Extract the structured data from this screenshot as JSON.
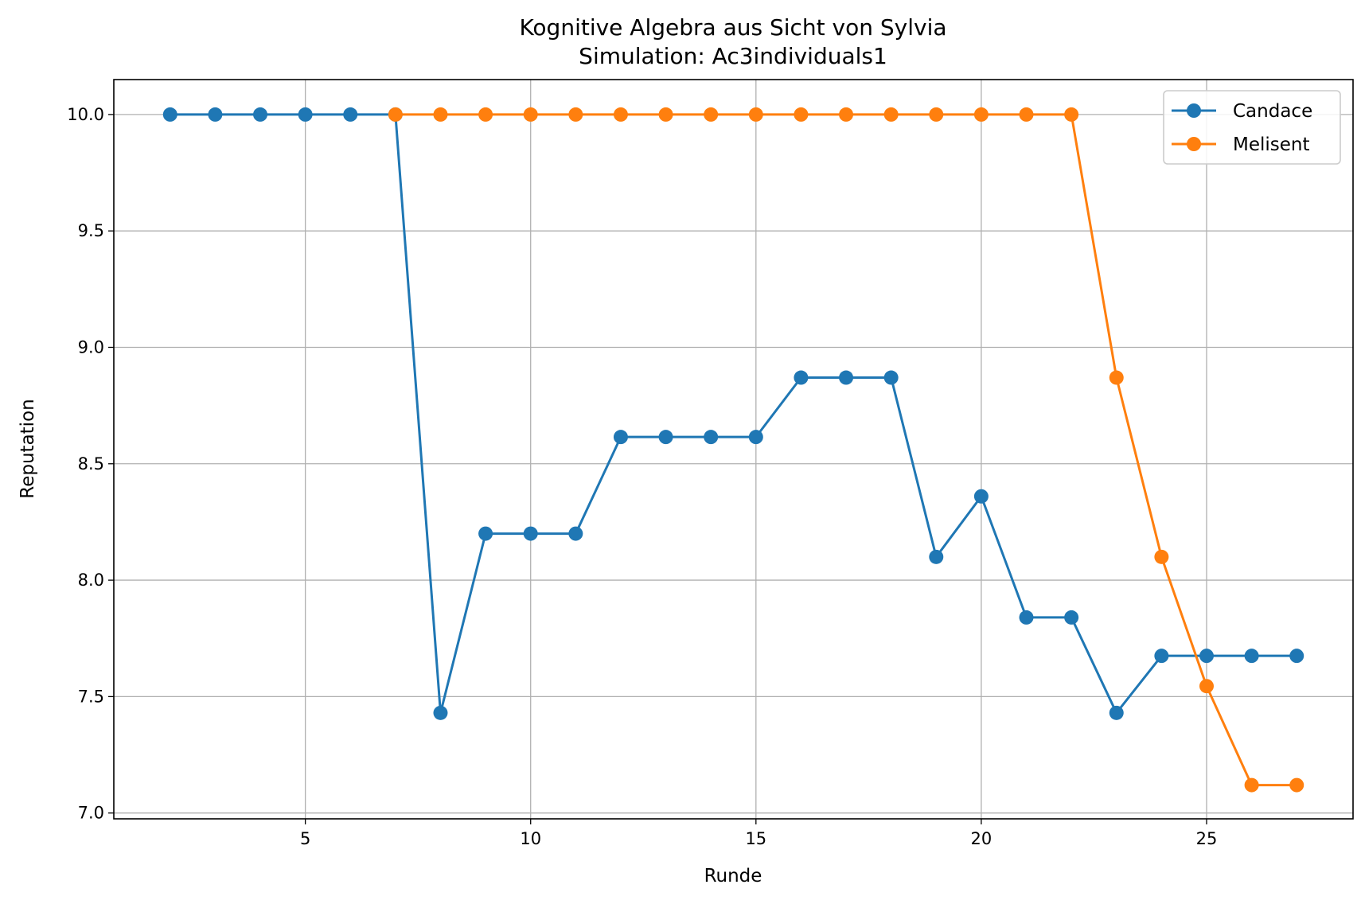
{
  "chart_data": {
    "type": "line",
    "title": "Kognitive Algebra aus Sicht von Sylvia",
    "subtitle": "Simulation: Ac3individuals1",
    "xlabel": "Runde",
    "ylabel": "Reputation",
    "xlim": [
      0.75,
      28.25
    ],
    "ylim": [
      6.975,
      10.15
    ],
    "xticks": [
      5,
      10,
      15,
      20,
      25
    ],
    "yticks": [
      7.0,
      7.5,
      8.0,
      8.5,
      9.0,
      9.5,
      10.0
    ],
    "grid": true,
    "legend_position": "top-right",
    "series": [
      {
        "name": "Candace",
        "color": "#1f77b4",
        "x": [
          2,
          3,
          4,
          5,
          6,
          7,
          8,
          9,
          10,
          11,
          12,
          13,
          14,
          15,
          16,
          17,
          18,
          19,
          20,
          21,
          22,
          23,
          24,
          25,
          26,
          27
        ],
        "y": [
          10.0,
          10.0,
          10.0,
          10.0,
          10.0,
          10.0,
          7.43,
          8.2,
          8.2,
          8.2,
          8.615,
          8.615,
          8.615,
          8.615,
          8.87,
          8.87,
          8.87,
          8.1,
          8.36,
          7.84,
          7.84,
          7.43,
          7.675,
          7.675,
          7.675,
          7.675
        ]
      },
      {
        "name": "Melisent",
        "color": "#ff7f0e",
        "x": [
          7,
          8,
          9,
          10,
          11,
          12,
          13,
          14,
          15,
          16,
          17,
          18,
          19,
          20,
          21,
          22,
          23,
          24,
          25,
          26,
          27
        ],
        "y": [
          10.0,
          10.0,
          10.0,
          10.0,
          10.0,
          10.0,
          10.0,
          10.0,
          10.0,
          10.0,
          10.0,
          10.0,
          10.0,
          10.0,
          10.0,
          10.0,
          8.87,
          8.1,
          7.545,
          7.12,
          7.12
        ]
      }
    ]
  }
}
